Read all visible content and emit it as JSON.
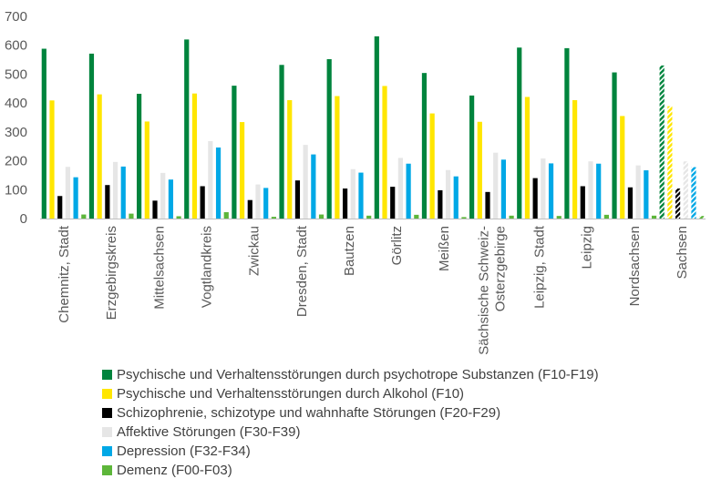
{
  "chart_data": {
    "type": "bar",
    "ylim": [
      0,
      700
    ],
    "yticks": [
      0,
      100,
      200,
      300,
      400,
      500,
      600,
      700
    ],
    "grid": false,
    "legend_position": "bottom",
    "categories": [
      "Chemnitz, Stadt",
      "Erzgebirgskreis",
      "Mittelsachsen",
      "Vogtlandkreis",
      "Zwickau",
      "Dresden, Stadt",
      "Bautzen",
      "Görlitz",
      "Meißen",
      "Sächsische Schweiz-Osterzgebirge",
      "Leipzig, Stadt",
      "Leipzig",
      "Nordsachsen",
      "Sachsen"
    ],
    "category_lines": [
      [
        "Chemnitz, Stadt"
      ],
      [
        "Erzgebirgskreis"
      ],
      [
        "Mittelsachsen"
      ],
      [
        "Vogtlandkreis"
      ],
      [
        "Zwickau"
      ],
      [
        "Dresden, Stadt"
      ],
      [
        "Bautzen"
      ],
      [
        "Görlitz"
      ],
      [
        "Meißen"
      ],
      [
        "Sächsische Schweiz-",
        "Osterzgebirge"
      ],
      [
        "Leipzig, Stadt"
      ],
      [
        "Leipzig"
      ],
      [
        "Nordsachsen"
      ],
      [
        "Sachsen"
      ]
    ],
    "hatched_category": "Sachsen",
    "series": [
      {
        "name": "Psychische und Verhaltensstörungen durch psychotrope Substanzen (F10-F19)",
        "color": "#00843D",
        "values": [
          588,
          571,
          432,
          620,
          460,
          532,
          552,
          631,
          504,
          426,
          592,
          590,
          506,
          530
        ]
      },
      {
        "name": "Psychische und Verhaltensstörungen durch Alkohol (F10)",
        "color": "#FFE600",
        "values": [
          409,
          430,
          336,
          433,
          334,
          410,
          424,
          459,
          364,
          335,
          421,
          410,
          355,
          389
        ]
      },
      {
        "name": "Schizophrenie, schizotype und wahnhafte Störungen (F20-F29)",
        "color": "#000000",
        "values": [
          78,
          116,
          62,
          112,
          64,
          132,
          104,
          110,
          98,
          92,
          140,
          112,
          108,
          104
        ]
      },
      {
        "name": "Affektive Störungen (F30-F39)",
        "color": "#E6E6E6",
        "values": [
          179,
          196,
          158,
          268,
          118,
          255,
          171,
          210,
          168,
          228,
          208,
          198,
          184,
          198
        ]
      },
      {
        "name": "Depression (F32-F34)",
        "color": "#00A8E6",
        "values": [
          143,
          180,
          135,
          246,
          106,
          222,
          159,
          190,
          146,
          204,
          191,
          190,
          167,
          178
        ]
      },
      {
        "name": "Demenz (F00-F03)",
        "color": "#5DB63A",
        "values": [
          14,
          17,
          8,
          22,
          6,
          14,
          10,
          13,
          5,
          10,
          9,
          13,
          10,
          9
        ]
      }
    ]
  }
}
